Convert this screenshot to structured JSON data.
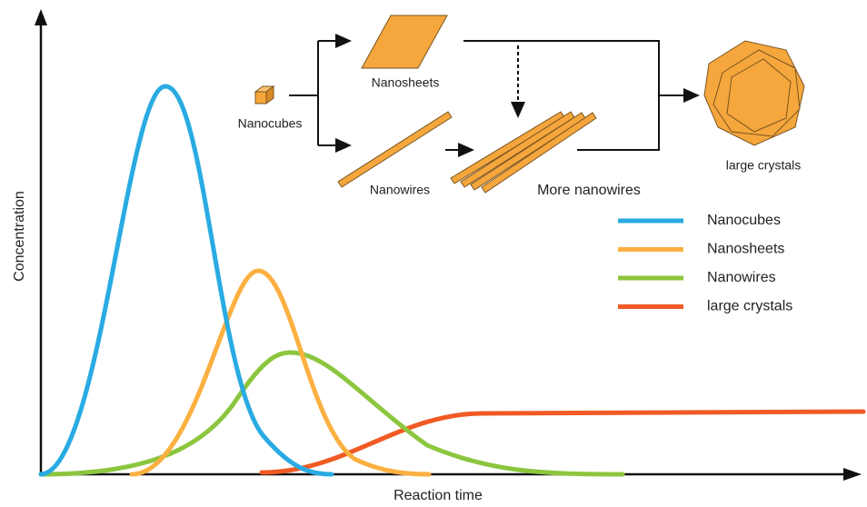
{
  "axes": {
    "x_label": "Reaction time",
    "y_label": "Concentration"
  },
  "legend": [
    {
      "name": "Nanocubes",
      "color": "#29abe2"
    },
    {
      "name": "Nanosheets",
      "color": "#fbb040"
    },
    {
      "name": "Nanowires",
      "color": "#8cc63f"
    },
    {
      "name": "large crystals",
      "color": "#f15a24"
    }
  ],
  "scheme": {
    "nodes": [
      "Nanocubes",
      "Nanosheets",
      "Nanowires",
      "More nanowires",
      "large crystals"
    ]
  }
}
